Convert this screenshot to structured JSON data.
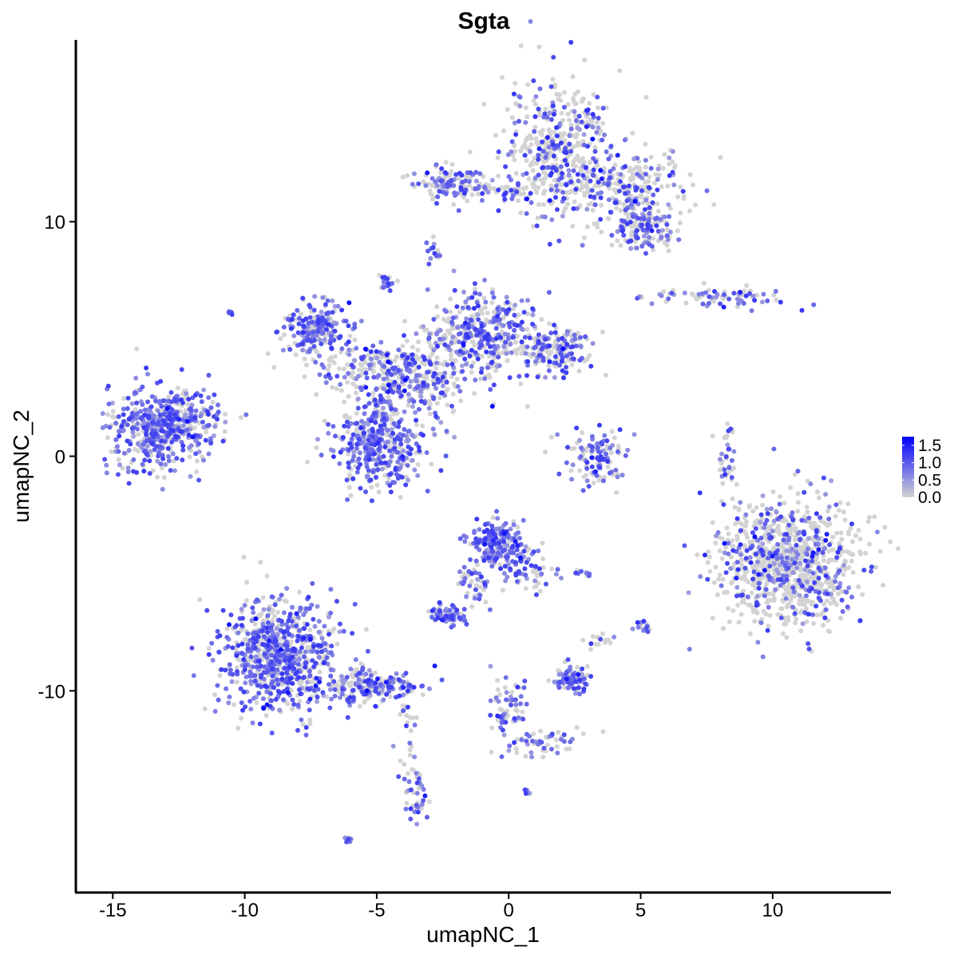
{
  "chart_data": {
    "type": "scatter",
    "title": "Sgta",
    "xlabel": "umapNC_1",
    "ylabel": "umapNC_2",
    "xlim": [
      -16.4,
      14.45
    ],
    "ylim": [
      -18.6,
      17.75
    ],
    "x_ticks": [
      -15,
      -10,
      -5,
      0,
      5,
      10
    ],
    "y_ticks": [
      -10,
      0,
      10
    ],
    "x_tick_labels": [
      "-15",
      "-10",
      "-5",
      "0",
      "5",
      "10"
    ],
    "y_tick_labels": [
      "-10",
      "0",
      "10"
    ],
    "grid": false,
    "color_scale": {
      "low": "#D3D3D3",
      "high": "#0000FF",
      "min": 0,
      "max": 1.75,
      "ticks": [
        0,
        0.5,
        1.0,
        1.5
      ],
      "tick_labels": [
        "0.0",
        "0.5",
        "1.0",
        "1.5"
      ],
      "legend_placement": "right"
    },
    "clusters": [
      {
        "center": [
          1.9,
          13.3
        ],
        "sd": [
          1.1,
          1.5
        ],
        "n": 420,
        "expr_frac": 0.35
      },
      {
        "center": [
          4.6,
          11.3
        ],
        "sd": [
          1.1,
          0.9
        ],
        "n": 260,
        "expr_frac": 0.4
      },
      {
        "center": [
          5.2,
          9.6
        ],
        "sd": [
          0.6,
          0.45
        ],
        "n": 120,
        "expr_frac": 0.5
      },
      {
        "center": [
          -2.3,
          11.6
        ],
        "sd": [
          0.7,
          0.35
        ],
        "n": 130,
        "expr_frac": 0.55
      },
      {
        "center": [
          -0.2,
          11.3
        ],
        "sd": [
          1.0,
          0.2
        ],
        "n": 60,
        "expr_frac": 0.4
      },
      {
        "center": [
          -2.8,
          8.7
        ],
        "sd": [
          0.15,
          0.25
        ],
        "n": 15,
        "expr_frac": 0.6
      },
      {
        "center": [
          8.2,
          6.8
        ],
        "sd": [
          1.4,
          0.2
        ],
        "n": 80,
        "expr_frac": 0.5
      },
      {
        "center": [
          -13.2,
          1.2
        ],
        "sd": [
          1.0,
          0.9
        ],
        "n": 420,
        "expr_frac": 0.75
      },
      {
        "center": [
          -12.0,
          1.5
        ],
        "sd": [
          0.6,
          0.6
        ],
        "n": 80,
        "expr_frac": 0.6
      },
      {
        "center": [
          -7.3,
          5.4
        ],
        "sd": [
          0.6,
          0.6
        ],
        "n": 200,
        "expr_frac": 0.65
      },
      {
        "center": [
          -1.1,
          5.2
        ],
        "sd": [
          1.1,
          0.9
        ],
        "n": 360,
        "expr_frac": 0.55
      },
      {
        "center": [
          1.6,
          4.5
        ],
        "sd": [
          0.8,
          0.5
        ],
        "n": 170,
        "expr_frac": 0.5
      },
      {
        "center": [
          -5.0,
          0.5
        ],
        "sd": [
          0.9,
          0.9
        ],
        "n": 380,
        "expr_frac": 0.65
      },
      {
        "center": [
          -3.5,
          3.2
        ],
        "sd": [
          1.2,
          0.9
        ],
        "n": 260,
        "expr_frac": 0.55
      },
      {
        "center": [
          -5.2,
          3.8
        ],
        "sd": [
          1.2,
          0.5
        ],
        "n": 120,
        "expr_frac": 0.45
      },
      {
        "center": [
          3.3,
          0.0
        ],
        "sd": [
          0.6,
          0.6
        ],
        "n": 120,
        "expr_frac": 0.5
      },
      {
        "center": [
          8.2,
          0.0
        ],
        "sd": [
          0.2,
          0.8
        ],
        "n": 40,
        "expr_frac": 0.4
      },
      {
        "center": [
          10.6,
          -4.6
        ],
        "sd": [
          1.3,
          1.3
        ],
        "n": 950,
        "expr_frac": 0.3
      },
      {
        "center": [
          -0.4,
          -3.7
        ],
        "sd": [
          0.5,
          0.5
        ],
        "n": 200,
        "expr_frac": 0.8
      },
      {
        "center": [
          0.6,
          -4.8
        ],
        "sd": [
          0.5,
          0.5
        ],
        "n": 60,
        "expr_frac": 0.5
      },
      {
        "center": [
          -2.3,
          -6.8
        ],
        "sd": [
          0.35,
          0.2
        ],
        "n": 70,
        "expr_frac": 0.75
      },
      {
        "center": [
          -1.4,
          -5.4
        ],
        "sd": [
          0.3,
          0.6
        ],
        "n": 40,
        "expr_frac": 0.55
      },
      {
        "center": [
          -8.7,
          -8.4
        ],
        "sd": [
          1.1,
          1.2
        ],
        "n": 750,
        "expr_frac": 0.65
      },
      {
        "center": [
          -5.3,
          -9.8
        ],
        "sd": [
          0.9,
          0.35
        ],
        "n": 200,
        "expr_frac": 0.55
      },
      {
        "center": [
          2.4,
          -9.5
        ],
        "sd": [
          0.35,
          0.3
        ],
        "n": 80,
        "expr_frac": 0.6
      },
      {
        "center": [
          -3.5,
          -14.3
        ],
        "sd": [
          0.2,
          0.6
        ],
        "n": 40,
        "expr_frac": 0.6
      },
      {
        "center": [
          -3.9,
          -11.8
        ],
        "sd": [
          0.2,
          1.0
        ],
        "n": 25,
        "expr_frac": 0.3
      },
      {
        "center": [
          0.1,
          -10.9
        ],
        "sd": [
          0.4,
          1.0
        ],
        "n": 70,
        "expr_frac": 0.5
      },
      {
        "center": [
          1.6,
          -12.2
        ],
        "sd": [
          0.7,
          0.3
        ],
        "n": 45,
        "expr_frac": 0.5
      },
      {
        "center": [
          5.1,
          -7.3
        ],
        "sd": [
          0.15,
          0.25
        ],
        "n": 15,
        "expr_frac": 0.5
      },
      {
        "center": [
          3.3,
          -7.8
        ],
        "sd": [
          0.3,
          0.3
        ],
        "n": 15,
        "expr_frac": 0.3
      },
      {
        "center": [
          2.8,
          -5.0
        ],
        "sd": [
          0.2,
          0.1
        ],
        "n": 10,
        "expr_frac": 0.5
      },
      {
        "center": [
          -4.7,
          7.4
        ],
        "sd": [
          0.15,
          0.2
        ],
        "n": 20,
        "expr_frac": 0.6
      },
      {
        "center": [
          -6.1,
          -16.3
        ],
        "sd": [
          0.1,
          0.1
        ],
        "n": 8,
        "expr_frac": 0.8
      },
      {
        "center": [
          0.6,
          -14.3
        ],
        "sd": [
          0.08,
          0.08
        ],
        "n": 6,
        "expr_frac": 0.8
      },
      {
        "center": [
          -10.5,
          6.1
        ],
        "sd": [
          0.05,
          0.05
        ],
        "n": 4,
        "expr_frac": 0.8
      }
    ]
  }
}
